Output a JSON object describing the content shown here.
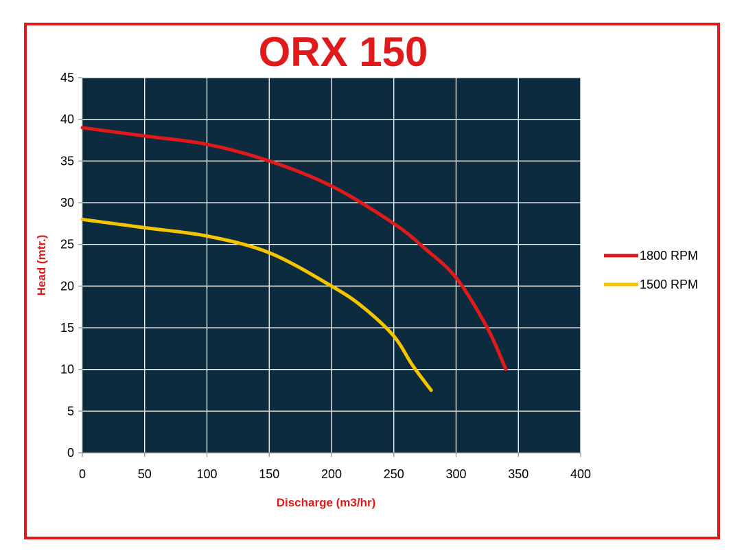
{
  "chart_data": {
    "type": "line",
    "title": "ORX 150",
    "xlabel": "Discharge (m3/hr)",
    "ylabel": "Head (mtr.)",
    "xlim": [
      0,
      400
    ],
    "ylim": [
      0,
      45
    ],
    "x_ticks": [
      0,
      50,
      100,
      150,
      200,
      250,
      300,
      350,
      400
    ],
    "y_ticks": [
      0,
      5,
      10,
      15,
      20,
      25,
      30,
      35,
      40,
      45
    ],
    "grid": true,
    "legend_position": "right",
    "plot_background": "#0d2b3e",
    "grid_color": "#ffffff",
    "series": [
      {
        "name": "1800 RPM",
        "color": "#e01a1a",
        "points": [
          [
            0,
            39
          ],
          [
            50,
            38
          ],
          [
            100,
            37
          ],
          [
            150,
            35
          ],
          [
            200,
            32
          ],
          [
            250,
            27.5
          ],
          [
            275,
            24.5
          ],
          [
            300,
            21
          ],
          [
            325,
            15
          ],
          [
            340,
            10
          ]
        ]
      },
      {
        "name": "1500 RPM",
        "color": "#f5c400",
        "points": [
          [
            0,
            28
          ],
          [
            50,
            27
          ],
          [
            100,
            26
          ],
          [
            150,
            24
          ],
          [
            200,
            20
          ],
          [
            225,
            17.5
          ],
          [
            250,
            14
          ],
          [
            265,
            10.5
          ],
          [
            280,
            7.5
          ]
        ]
      }
    ]
  }
}
